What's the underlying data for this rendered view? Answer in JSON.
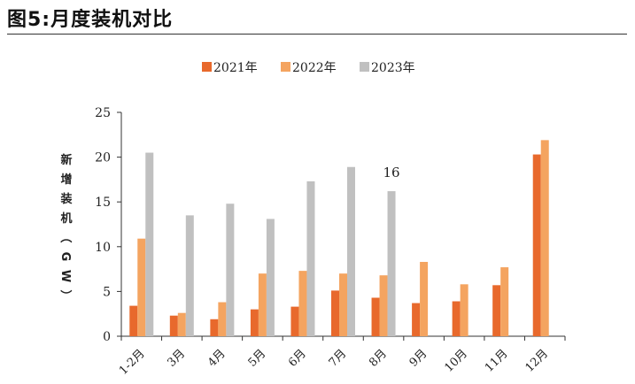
{
  "figure": {
    "title": "图5:月度装机对比"
  },
  "chart_data": {
    "type": "bar",
    "title": "",
    "xlabel": "",
    "ylabel": "新增装机（GW）",
    "ylim": [
      0,
      25
    ],
    "yticks": [
      0,
      5,
      10,
      15,
      20,
      25
    ],
    "grid": false,
    "legend_position": "top-center",
    "categories": [
      "1-2月",
      "3月",
      "4月",
      "5月",
      "6月",
      "7月",
      "8月",
      "9月",
      "10月",
      "11月",
      "12月"
    ],
    "series": [
      {
        "name": "2021年",
        "color": "#E8692C",
        "values": [
          3.4,
          2.3,
          1.9,
          3.0,
          3.3,
          5.1,
          4.3,
          3.7,
          3.9,
          5.7,
          20.3
        ]
      },
      {
        "name": "2022年",
        "color": "#F4A460",
        "values": [
          10.9,
          2.6,
          3.8,
          7.0,
          7.3,
          7.0,
          6.8,
          8.3,
          5.8,
          7.7,
          21.9
        ]
      },
      {
        "name": "2023年",
        "color": "#C0C0C0",
        "values": [
          20.5,
          13.5,
          14.8,
          13.1,
          17.3,
          18.9,
          16.2,
          null,
          null,
          null,
          null
        ]
      }
    ],
    "annotations": [
      {
        "text": "16",
        "category": "8月",
        "series": "2023年"
      }
    ]
  }
}
